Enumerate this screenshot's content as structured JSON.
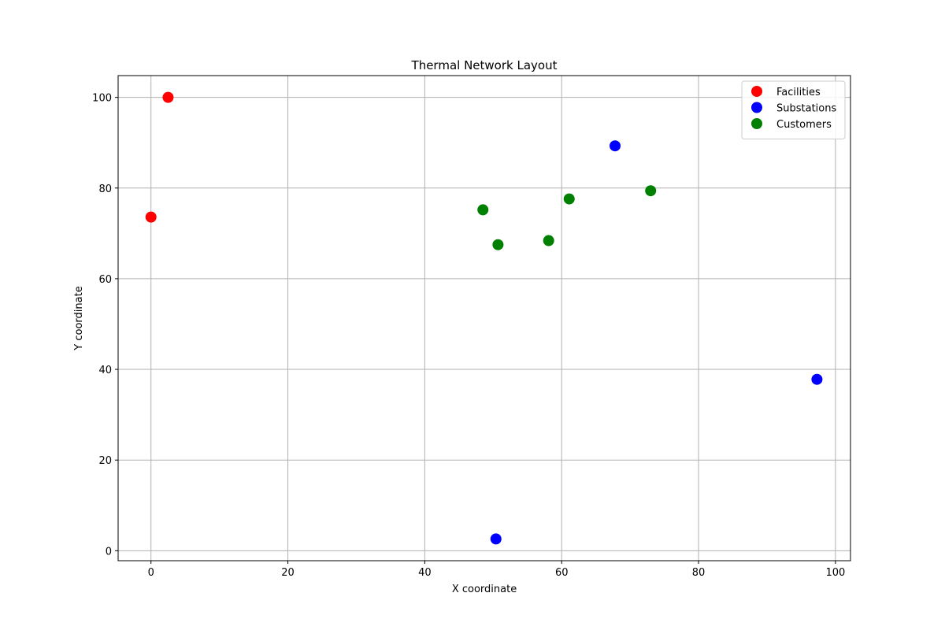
{
  "chart_data": {
    "type": "scatter",
    "title": "Thermal Network Layout",
    "xlabel": "X coordinate",
    "ylabel": "Y coordinate",
    "xlim": [
      -4.8,
      102.2
    ],
    "ylim": [
      -2.2,
      104.8
    ],
    "xticks": [
      0,
      20,
      40,
      60,
      80,
      100
    ],
    "yticks": [
      0,
      20,
      40,
      60,
      80,
      100
    ],
    "grid": true,
    "legend_position": "top-right",
    "series": [
      {
        "name": "Facilities",
        "color": "#ff0000",
        "points": [
          {
            "x": 2.5,
            "y": 100.0
          },
          {
            "x": 0.0,
            "y": 73.6
          }
        ]
      },
      {
        "name": "Substations",
        "color": "#0000ff",
        "points": [
          {
            "x": 67.8,
            "y": 89.3
          },
          {
            "x": 97.3,
            "y": 37.8
          },
          {
            "x": 50.4,
            "y": 2.6
          }
        ]
      },
      {
        "name": "Customers",
        "color": "#008000",
        "points": [
          {
            "x": 48.5,
            "y": 75.2
          },
          {
            "x": 50.7,
            "y": 67.5
          },
          {
            "x": 58.1,
            "y": 68.4
          },
          {
            "x": 61.1,
            "y": 77.6
          },
          {
            "x": 73.0,
            "y": 79.4
          }
        ]
      }
    ]
  }
}
